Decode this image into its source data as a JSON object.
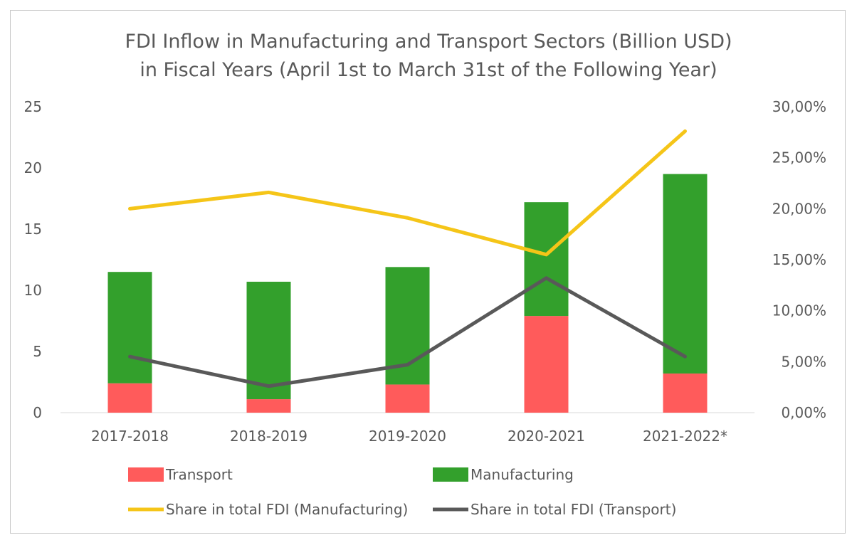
{
  "chart_data": {
    "type": "bar+line",
    "title": [
      "FDI Inflow in Manufacturing and Transport Sectors (Billion USD)",
      "in Fiscal Years (April 1st to March 31st of the Following Year)"
    ],
    "categories": [
      "2017-2018",
      "2018-2019",
      "2019-2020",
      "2020-2021",
      "2021-2022*"
    ],
    "bar_series": [
      {
        "name": "Transport",
        "color": "#ff5b5b",
        "values": [
          2.4,
          1.1,
          2.3,
          7.9,
          3.2
        ]
      },
      {
        "name": "Manufacturing",
        "color": "#33a02c",
        "values": [
          9.1,
          9.6,
          9.6,
          9.3,
          16.3
        ]
      }
    ],
    "line_series": [
      {
        "name": "Share in total FDI (Manufacturing)",
        "color": "#f5c518",
        "values": [
          20.0,
          21.6,
          19.1,
          15.5,
          27.6
        ]
      },
      {
        "name": "Share in total FDI (Transport)",
        "color": "#595959",
        "values": [
          5.5,
          2.6,
          4.7,
          13.2,
          5.5
        ]
      }
    ],
    "y_left": {
      "min": 0,
      "max": 25,
      "ticks": [
        "0",
        "5",
        "10",
        "15",
        "20",
        "25"
      ]
    },
    "y_right": {
      "min": 0,
      "max": 30,
      "ticks": [
        "0,00%",
        "5,00%",
        "10,00%",
        "15,00%",
        "20,00%",
        "25,00%",
        "30,00%"
      ]
    },
    "legend": [
      "Transport",
      "Manufacturing",
      "Share in total FDI (Manufacturing)",
      "Share in total FDI (Transport)"
    ],
    "legend_position": "bottom",
    "grid": false
  }
}
